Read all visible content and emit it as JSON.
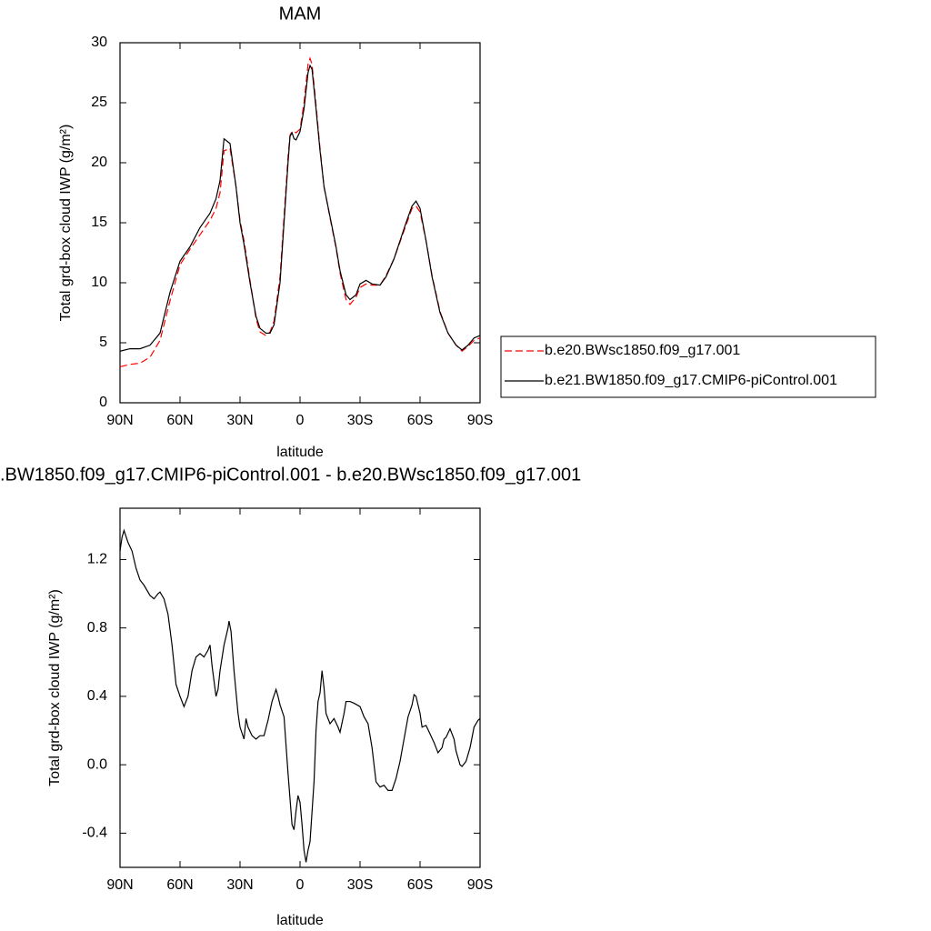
{
  "chart_data": [
    {
      "type": "line",
      "title": "MAM",
      "xlabel": "latitude",
      "ylabel": "Total grd-box cloud IWP (g/m²)",
      "x": [
        90,
        85,
        80,
        75,
        70,
        65,
        60,
        55,
        50,
        45,
        42,
        40,
        38,
        35,
        32,
        30,
        28,
        25,
        22,
        20,
        17,
        15,
        13,
        10,
        8,
        6,
        5,
        4,
        3,
        2,
        0,
        -2,
        -4,
        -5,
        -6,
        -8,
        -10,
        -12,
        -15,
        -18,
        -20,
        -23,
        -25,
        -28,
        -30,
        -33,
        -36,
        -40,
        -43,
        -47,
        -50,
        -53,
        -56,
        -58,
        -60,
        -63,
        -66,
        -70,
        -74,
        -78,
        -81,
        -84,
        -87,
        -90
      ],
      "series": [
        {
          "name": "b.e20.BWsc1850.f09_g17.001",
          "color": "#ff0000",
          "dash": true,
          "values": [
            3.0,
            3.2,
            3.3,
            3.8,
            5.2,
            8.5,
            11.5,
            12.8,
            14.0,
            15.2,
            16.2,
            17.5,
            21.0,
            21.2,
            18.0,
            15.2,
            13.5,
            10.2,
            7.0,
            5.9,
            5.6,
            5.9,
            6.8,
            10.5,
            15.5,
            20.5,
            22.3,
            22.6,
            22.6,
            22.5,
            22.8,
            25.0,
            28.2,
            28.7,
            28.2,
            24.8,
            21.2,
            18.0,
            15.4,
            12.9,
            10.8,
            8.6,
            8.2,
            8.8,
            9.6,
            9.9,
            9.8,
            9.8,
            10.6,
            12.0,
            13.4,
            14.8,
            16.2,
            16.4,
            15.9,
            13.5,
            10.6,
            7.6,
            5.8,
            4.8,
            4.3,
            4.7,
            5.2,
            5.4
          ]
        },
        {
          "name": "b.e21.BW1850.f09_g17.CMIP6-piControl.001",
          "color": "#000000",
          "dash": false,
          "values": [
            4.3,
            4.5,
            4.5,
            4.8,
            5.8,
            9.2,
            11.8,
            13.0,
            14.6,
            15.8,
            17.0,
            18.5,
            22.0,
            21.6,
            18.0,
            15.0,
            13.2,
            10.0,
            7.2,
            6.2,
            5.8,
            5.8,
            6.5,
            10.0,
            15.0,
            20.0,
            22.2,
            22.5,
            22.0,
            21.9,
            22.6,
            24.5,
            27.5,
            28.1,
            27.8,
            24.5,
            21.0,
            18.0,
            15.5,
            13.0,
            11.0,
            9.0,
            8.6,
            9.0,
            9.9,
            10.2,
            9.9,
            9.8,
            10.5,
            12.0,
            13.5,
            15.0,
            16.4,
            16.8,
            16.2,
            13.5,
            10.5,
            7.5,
            5.8,
            4.8,
            4.4,
            4.8,
            5.4,
            5.6
          ]
        }
      ],
      "xlim": [
        90,
        -90
      ],
      "xticks": [
        {
          "value": 90,
          "label": "90N"
        },
        {
          "value": 60,
          "label": "60N"
        },
        {
          "value": 30,
          "label": "30N"
        },
        0,
        {
          "value": -30,
          "label": "30S"
        },
        {
          "value": -60,
          "label": "60S"
        },
        {
          "value": -90,
          "label": "90S"
        }
      ],
      "ylim": [
        0,
        30
      ],
      "yticks": [
        0,
        5,
        10,
        15,
        20,
        25,
        30
      ],
      "legend": "right"
    },
    {
      "type": "line",
      "title": ".BW1850.f09_g17.CMIP6-piControl.001 - b.e20.BWsc1850.f09_g17.001",
      "xlabel": "latitude",
      "ylabel": "Total grd-box cloud IWP (g/m²)",
      "x": [
        90,
        89,
        88,
        86,
        84,
        82,
        80,
        78,
        75,
        73,
        71,
        70,
        68,
        66,
        64,
        62,
        60,
        58,
        56,
        54,
        52,
        50,
        48,
        46,
        45,
        44,
        42,
        41,
        40,
        38,
        36,
        35.5,
        34.5,
        33,
        31,
        30,
        28,
        27,
        26,
        24,
        22,
        20,
        18,
        16,
        14,
        12,
        11,
        10,
        8,
        6,
        4,
        3,
        2,
        1,
        0,
        -1,
        -2,
        -3,
        -4,
        -5,
        -7,
        -8,
        -9,
        -10,
        -11,
        -12,
        -13,
        -15,
        -17,
        -19,
        -20,
        -22,
        -23,
        -25,
        -27,
        -30,
        -32,
        -34,
        -36,
        -38,
        -40,
        -42,
        -44,
        -46,
        -48,
        -50,
        -52,
        -54,
        -56,
        -57,
        -58,
        -60,
        -61,
        -63,
        -65,
        -67,
        -69,
        -71,
        -72,
        -73,
        -75,
        -77,
        -78,
        -80,
        -81,
        -83,
        -85,
        -87,
        -89,
        -90
      ],
      "series": [
        {
          "color": "#000000",
          "values": [
            1.25,
            1.33,
            1.37,
            1.3,
            1.25,
            1.15,
            1.08,
            1.05,
            0.99,
            0.97,
            1.0,
            1.01,
            0.97,
            0.88,
            0.7,
            0.47,
            0.4,
            0.34,
            0.4,
            0.55,
            0.63,
            0.65,
            0.63,
            0.67,
            0.7,
            0.58,
            0.4,
            0.44,
            0.55,
            0.7,
            0.8,
            0.84,
            0.78,
            0.55,
            0.3,
            0.22,
            0.15,
            0.27,
            0.22,
            0.17,
            0.15,
            0.17,
            0.17,
            0.26,
            0.37,
            0.44,
            0.4,
            0.35,
            0.28,
            -0.05,
            -0.35,
            -0.38,
            -0.27,
            -0.18,
            -0.22,
            -0.35,
            -0.5,
            -0.57,
            -0.5,
            -0.45,
            -0.1,
            0.2,
            0.37,
            0.42,
            0.55,
            0.45,
            0.3,
            0.24,
            0.27,
            0.22,
            0.19,
            0.3,
            0.37,
            0.37,
            0.36,
            0.34,
            0.28,
            0.24,
            0.1,
            -0.1,
            -0.13,
            -0.12,
            -0.15,
            -0.15,
            -0.08,
            0.02,
            0.15,
            0.28,
            0.35,
            0.41,
            0.4,
            0.3,
            0.22,
            0.23,
            0.18,
            0.13,
            0.07,
            0.1,
            0.15,
            0.16,
            0.21,
            0.15,
            0.08,
            0.0,
            -0.01,
            0.02,
            0.1,
            0.22,
            0.26,
            0.27
          ]
        }
      ],
      "xlim": [
        90,
        -90
      ],
      "xticks": [
        {
          "value": 90,
          "label": "90N"
        },
        {
          "value": 60,
          "label": "60N"
        },
        {
          "value": 30,
          "label": "30N"
        },
        0,
        {
          "value": -30,
          "label": "30S"
        },
        {
          "value": -60,
          "label": "60S"
        },
        {
          "value": -90,
          "label": "90S"
        }
      ],
      "ylim": [
        -0.6,
        1.5
      ],
      "yticks": [
        -0.4,
        {
          "value": 0,
          "label": "0.0"
        },
        0.4,
        0.8,
        1.2
      ]
    }
  ]
}
